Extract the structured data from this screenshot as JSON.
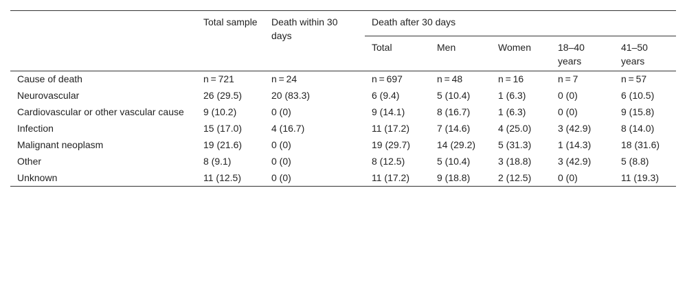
{
  "header": {
    "total_sample": "Total sample",
    "death_within_30": "Death within 30 days",
    "death_after_30": "Death after 30 days",
    "sub_columns": [
      "Total",
      "Men",
      "Women",
      "18–40 years",
      "41–50 years"
    ]
  },
  "rows": [
    {
      "label": "Cause of death",
      "cells": [
        "n = 721",
        "n = 24",
        "n = 697",
        "n = 48",
        "n = 16",
        "n = 7",
        "n = 57"
      ]
    },
    {
      "label": "Neurovascular",
      "cells": [
        "26 (29.5)",
        "20 (83.3)",
        "6 (9.4)",
        "5 (10.4)",
        "1 (6.3)",
        "0 (0)",
        "6 (10.5)"
      ]
    },
    {
      "label": "Cardiovascular or other vascular cause",
      "cells": [
        "9 (10.2)",
        "0 (0)",
        "9 (14.1)",
        "8 (16.7)",
        "1 (6.3)",
        "0 (0)",
        "9 (15.8)"
      ]
    },
    {
      "label": "Infection",
      "cells": [
        "15 (17.0)",
        "4 (16.7)",
        "11 (17.2)",
        "7 (14.6)",
        "4 (25.0)",
        "3 (42.9)",
        "8 (14.0)"
      ]
    },
    {
      "label": "Malignant neoplasm",
      "cells": [
        "19 (21.6)",
        "0 (0)",
        "19 (29.7)",
        "14 (29.2)",
        "5 (31.3)",
        "1 (14.3)",
        "18 (31.6)"
      ]
    },
    {
      "label": "Other",
      "cells": [
        "8 (9.1)",
        "0 (0)",
        "8 (12.5)",
        "5 (10.4)",
        "3 (18.8)",
        "3 (42.9)",
        "5 (8.8)"
      ]
    },
    {
      "label": "Unknown",
      "cells": [
        "11 (12.5)",
        "0 (0)",
        "11 (17.2)",
        "9 (18.8)",
        "2 (12.5)",
        "0 (0)",
        "11 (19.3)"
      ]
    }
  ]
}
